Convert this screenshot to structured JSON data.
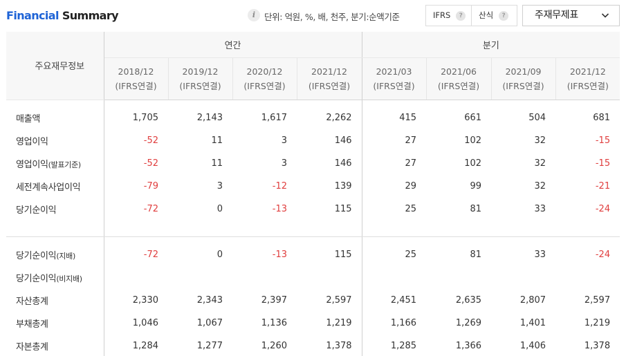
{
  "header": {
    "title_part1": "Financial",
    "title_part2": "Summary",
    "info_icon": "i",
    "unit_text": "단위: 억원, %, 배, 천주, 분기:순액기준",
    "toggle_ifrs": "IFRS",
    "toggle_sansik": "산식",
    "help_icon": "?",
    "dropdown_label": "주재무제표"
  },
  "table": {
    "corner_label": "주요재무정보",
    "group_annual": "연간",
    "group_quarter": "분기",
    "periods": [
      {
        "date": "2018/12",
        "basis": "(IFRS연결)"
      },
      {
        "date": "2019/12",
        "basis": "(IFRS연결)"
      },
      {
        "date": "2020/12",
        "basis": "(IFRS연결)"
      },
      {
        "date": "2021/12",
        "basis": "(IFRS연결)"
      },
      {
        "date": "2021/03",
        "basis": "(IFRS연결)"
      },
      {
        "date": "2021/06",
        "basis": "(IFRS연결)"
      },
      {
        "date": "2021/09",
        "basis": "(IFRS연결)"
      },
      {
        "date": "2021/12",
        "basis": "(IFRS연결)"
      }
    ],
    "rows": [
      {
        "label": "매출액",
        "label_sub": "",
        "values": [
          "1,705",
          "2,143",
          "1,617",
          "2,262",
          "415",
          "661",
          "504",
          "681"
        ]
      },
      {
        "label": "영업이익",
        "label_sub": "",
        "values": [
          "-52",
          "11",
          "3",
          "146",
          "27",
          "102",
          "32",
          "-15"
        ]
      },
      {
        "label": "영업이익",
        "label_sub": "(발표기준)",
        "values": [
          "-52",
          "11",
          "3",
          "146",
          "27",
          "102",
          "32",
          "-15"
        ]
      },
      {
        "label": "세전계속사업이익",
        "label_sub": "",
        "values": [
          "-79",
          "3",
          "-12",
          "139",
          "29",
          "99",
          "32",
          "-21"
        ]
      },
      {
        "label": "당기순이익",
        "label_sub": "",
        "values": [
          "-72",
          "0",
          "-13",
          "115",
          "25",
          "81",
          "33",
          "-24"
        ]
      },
      {
        "label": "당기순이익",
        "label_sub": "(지배)",
        "values": [
          "-72",
          "0",
          "-13",
          "115",
          "25",
          "81",
          "33",
          "-24"
        ]
      },
      {
        "label": "당기순이익",
        "label_sub": "(비지배)",
        "values": [
          "",
          "",
          "",
          "",
          "",
          "",
          "",
          ""
        ]
      },
      {
        "label": "자산총계",
        "label_sub": "",
        "values": [
          "2,330",
          "2,343",
          "2,397",
          "2,597",
          "2,451",
          "2,635",
          "2,807",
          "2,597"
        ]
      },
      {
        "label": "부채총계",
        "label_sub": "",
        "values": [
          "1,046",
          "1,067",
          "1,136",
          "1,219",
          "1,166",
          "1,269",
          "1,401",
          "1,219"
        ]
      },
      {
        "label": "자본총계",
        "label_sub": "",
        "values": [
          "1,284",
          "1,277",
          "1,260",
          "1,378",
          "1,285",
          "1,366",
          "1,406",
          "1,378"
        ]
      }
    ]
  },
  "colors": {
    "brand_blue": "#1e63d6",
    "negative_red": "#e03e3e",
    "header_bg": "#f7f7f7"
  },
  "icons": {
    "info": "info-icon",
    "help": "question-icon",
    "dropdown": "chevron-down-icon"
  }
}
